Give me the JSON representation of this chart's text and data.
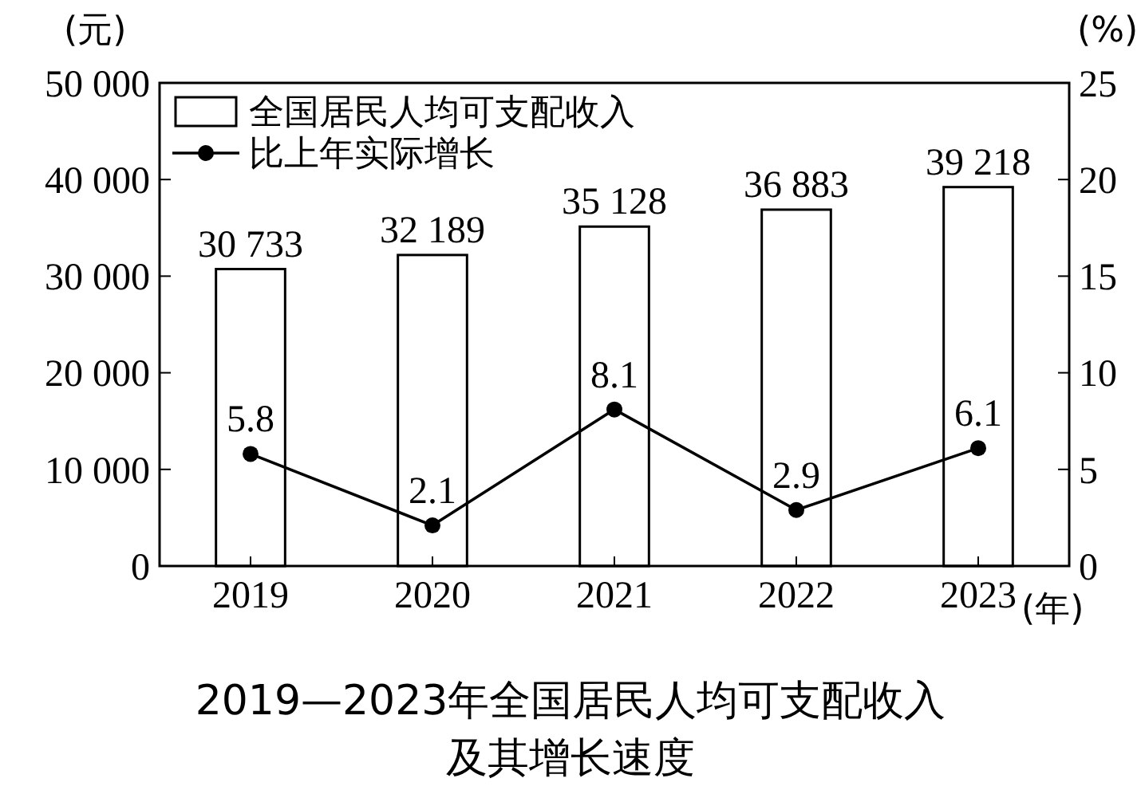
{
  "chart_data": {
    "type": "bar",
    "title": "2019—2023年全国居民人均可支配收入及其增长速度",
    "ylabel": "(元)",
    "y2label": "(%)",
    "xlabel": "(年)",
    "categories": [
      "2019",
      "2020",
      "2021",
      "2022",
      "2023"
    ],
    "series": [
      {
        "name": "全国居民人均可支配收入",
        "color": "#ffffff",
        "values": [
          30733,
          32189,
          35128,
          36883,
          39218
        ],
        "value_labels": [
          "30 733",
          "32 189",
          "35 128",
          "36 883",
          "39 218"
        ]
      },
      {
        "name": "比上年实际增长",
        "type": "line",
        "axis": "y2",
        "color": "#000000",
        "values": [
          5.8,
          2.1,
          8.1,
          2.9,
          6.1
        ],
        "value_labels": [
          "5.8",
          "2.1",
          "8.1",
          "2.9",
          "6.1"
        ]
      }
    ],
    "ylim": [
      0,
      50000
    ],
    "yticks": [
      {
        "value": 0,
        "label": "0"
      },
      {
        "value": 10000,
        "label": "10 000"
      },
      {
        "value": 20000,
        "label": "20 000"
      },
      {
        "value": 30000,
        "label": "30 000"
      },
      {
        "value": 40000,
        "label": "40 000"
      },
      {
        "value": 50000,
        "label": "50 000"
      }
    ],
    "y2lim": [
      0,
      25
    ],
    "y2ticks": [
      0,
      5,
      10,
      15,
      20,
      25
    ],
    "legend": "top left",
    "marker": "circle",
    "line_style": "solid",
    "grid": false
  }
}
